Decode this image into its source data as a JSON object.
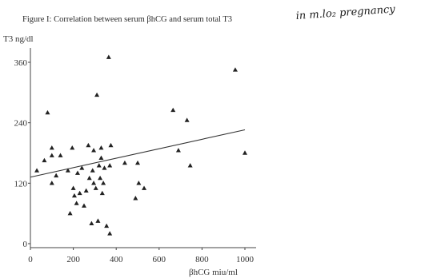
{
  "figure": {
    "caption": "Figure I: Correlation between serum βhCG and serum total T3",
    "handwritten_note": "in m.lo₂ pregnancy"
  },
  "chart_data": {
    "type": "scatter",
    "title": "Figure I: Correlation between serum βhCG and serum total T3",
    "xlabel": "βhCG miu/ml",
    "ylabel": "T3 ng/dl",
    "xlim": [
      0,
      1000
    ],
    "ylim": [
      0,
      360
    ],
    "xticks": [
      0,
      200,
      400,
      600,
      800,
      1000
    ],
    "yticks": [
      0,
      120,
      240,
      360
    ],
    "grid": false,
    "marker": "triangle",
    "points": [
      {
        "x": 30,
        "y": 145
      },
      {
        "x": 65,
        "y": 165
      },
      {
        "x": 80,
        "y": 260
      },
      {
        "x": 100,
        "y": 175
      },
      {
        "x": 100,
        "y": 190
      },
      {
        "x": 100,
        "y": 120
      },
      {
        "x": 120,
        "y": 135
      },
      {
        "x": 140,
        "y": 175
      },
      {
        "x": 175,
        "y": 145
      },
      {
        "x": 185,
        "y": 60
      },
      {
        "x": 195,
        "y": 190
      },
      {
        "x": 200,
        "y": 110
      },
      {
        "x": 205,
        "y": 95
      },
      {
        "x": 215,
        "y": 80
      },
      {
        "x": 220,
        "y": 140
      },
      {
        "x": 230,
        "y": 100
      },
      {
        "x": 240,
        "y": 150
      },
      {
        "x": 250,
        "y": 75
      },
      {
        "x": 260,
        "y": 105
      },
      {
        "x": 270,
        "y": 195
      },
      {
        "x": 275,
        "y": 130
      },
      {
        "x": 285,
        "y": 40
      },
      {
        "x": 290,
        "y": 145
      },
      {
        "x": 295,
        "y": 120
      },
      {
        "x": 295,
        "y": 185
      },
      {
        "x": 305,
        "y": 110
      },
      {
        "x": 310,
        "y": 295
      },
      {
        "x": 315,
        "y": 45
      },
      {
        "x": 320,
        "y": 155
      },
      {
        "x": 325,
        "y": 130
      },
      {
        "x": 330,
        "y": 170
      },
      {
        "x": 330,
        "y": 190
      },
      {
        "x": 335,
        "y": 100
      },
      {
        "x": 340,
        "y": 120
      },
      {
        "x": 345,
        "y": 150
      },
      {
        "x": 355,
        "y": 35
      },
      {
        "x": 365,
        "y": 370
      },
      {
        "x": 370,
        "y": 20
      },
      {
        "x": 370,
        "y": 155
      },
      {
        "x": 375,
        "y": 195
      },
      {
        "x": 440,
        "y": 160
      },
      {
        "x": 490,
        "y": 90
      },
      {
        "x": 500,
        "y": 160
      },
      {
        "x": 505,
        "y": 120
      },
      {
        "x": 530,
        "y": 110
      },
      {
        "x": 665,
        "y": 265
      },
      {
        "x": 690,
        "y": 185
      },
      {
        "x": 730,
        "y": 245
      },
      {
        "x": 745,
        "y": 155
      },
      {
        "x": 955,
        "y": 345
      },
      {
        "x": 1000,
        "y": 180
      }
    ],
    "regression_line": {
      "x": [
        0,
        1000
      ],
      "y": [
        132,
        226
      ]
    }
  }
}
